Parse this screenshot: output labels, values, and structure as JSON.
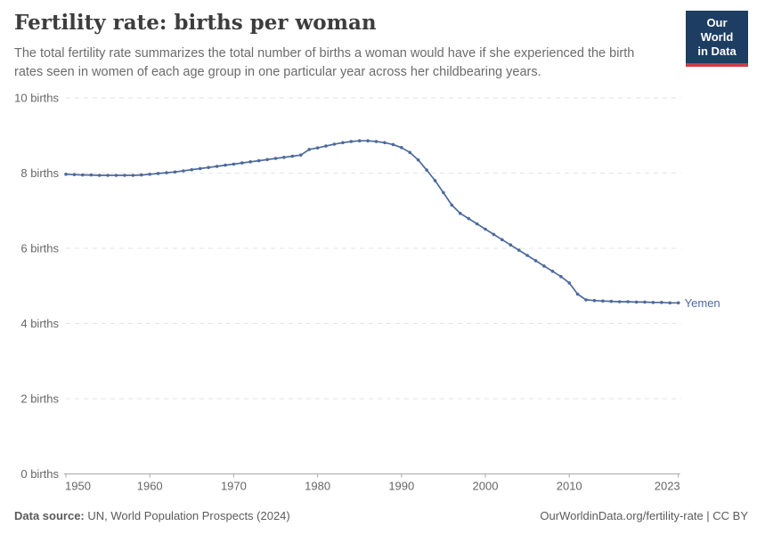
{
  "header": {
    "title": "Fertility rate: births per woman",
    "subtitle": "The total fertility rate summarizes the total number of births a woman would have if she experienced the birth rates seen in women of each age group in one particular year across her childbearing years."
  },
  "logo": {
    "line1": "Our World",
    "line2": "in Data",
    "bg_color": "#1d3d63",
    "bar_color": "#cd3c48"
  },
  "chart_data": {
    "type": "line",
    "title": "Fertility rate: births per woman",
    "xlabel": "",
    "ylabel": "births",
    "ylim": [
      0,
      10
    ],
    "xlim": [
      1950,
      2023
    ],
    "grid": "dashed-horizontal",
    "legend_position": "end-of-line-label",
    "line_color": "#4c6a9c",
    "y_ticks": [
      {
        "value": 0,
        "label": "0 births"
      },
      {
        "value": 2,
        "label": "2 births"
      },
      {
        "value": 4,
        "label": "4 births"
      },
      {
        "value": 6,
        "label": "6 births"
      },
      {
        "value": 8,
        "label": "8 births"
      },
      {
        "value": 10,
        "label": "10 births"
      }
    ],
    "x_ticks": [
      1950,
      1960,
      1970,
      1980,
      1990,
      2000,
      2010,
      2023
    ],
    "series": [
      {
        "name": "Yemen",
        "years": [
          1950,
          1951,
          1952,
          1953,
          1954,
          1955,
          1956,
          1957,
          1958,
          1959,
          1960,
          1961,
          1962,
          1963,
          1964,
          1965,
          1966,
          1967,
          1968,
          1969,
          1970,
          1971,
          1972,
          1973,
          1974,
          1975,
          1976,
          1977,
          1978,
          1979,
          1980,
          1981,
          1982,
          1983,
          1984,
          1985,
          1986,
          1987,
          1988,
          1989,
          1990,
          1991,
          1992,
          1993,
          1994,
          1995,
          1996,
          1997,
          1998,
          1999,
          2000,
          2001,
          2002,
          2003,
          2004,
          2005,
          2006,
          2007,
          2008,
          2009,
          2010,
          2011,
          2012,
          2013,
          2014,
          2015,
          2016,
          2017,
          2018,
          2019,
          2020,
          2021,
          2022,
          2023
        ],
        "values": [
          7.97,
          7.96,
          7.95,
          7.95,
          7.94,
          7.94,
          7.94,
          7.94,
          7.94,
          7.95,
          7.97,
          7.99,
          8.01,
          8.03,
          8.06,
          8.09,
          8.12,
          8.15,
          8.18,
          8.21,
          8.24,
          8.27,
          8.3,
          8.33,
          8.36,
          8.39,
          8.42,
          8.45,
          8.48,
          8.63,
          8.67,
          8.72,
          8.77,
          8.81,
          8.84,
          8.86,
          8.86,
          8.84,
          8.81,
          8.76,
          8.68,
          8.55,
          8.35,
          8.08,
          7.8,
          7.48,
          7.15,
          6.93,
          6.79,
          6.65,
          6.51,
          6.37,
          6.23,
          6.09,
          5.95,
          5.81,
          5.67,
          5.53,
          5.39,
          5.25,
          5.08,
          4.78,
          4.63,
          4.61,
          4.6,
          4.59,
          4.58,
          4.58,
          4.57,
          4.57,
          4.56,
          4.56,
          4.55,
          4.55
        ]
      }
    ]
  },
  "footer": {
    "datasource_label": "Data source:",
    "datasource": "UN, World Population Prospects (2024)",
    "attribution": "OurWorldinData.org/fertility-rate | CC BY"
  }
}
